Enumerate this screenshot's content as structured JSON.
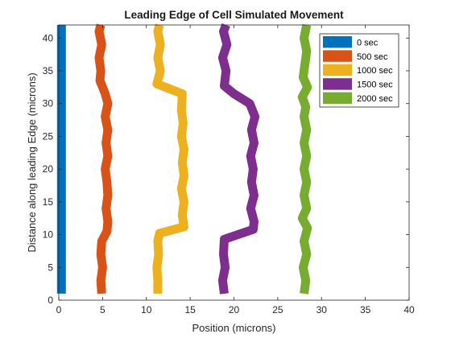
{
  "chart_data": {
    "type": "line",
    "title": "Leading Edge of Cell Simulated Movement",
    "xlabel": "Position (microns)",
    "ylabel": "Distance along leading Edge (microns)",
    "xlim": [
      0,
      40
    ],
    "ylim": [
      0,
      42
    ],
    "xticks": [
      "0",
      "5",
      "10",
      "15",
      "20",
      "25",
      "30",
      "35",
      "40"
    ],
    "yticks": [
      "0",
      "5",
      "10",
      "15",
      "20",
      "25",
      "30",
      "35",
      "40"
    ],
    "grid": false,
    "legend_position": "top-right",
    "series": [
      {
        "name": "0 sec",
        "color": "#0072BD",
        "points": [
          [
            0.3,
            1
          ],
          [
            0.3,
            42
          ]
        ]
      },
      {
        "name": "500 sec",
        "color": "#D95319",
        "points": [
          [
            4.9,
            1
          ],
          [
            4.8,
            3
          ],
          [
            5.0,
            5
          ],
          [
            4.8,
            7
          ],
          [
            4.9,
            9
          ],
          [
            5.5,
            10.5
          ],
          [
            5.6,
            12
          ],
          [
            5.4,
            14
          ],
          [
            5.6,
            16
          ],
          [
            5.5,
            18
          ],
          [
            5.3,
            20
          ],
          [
            5.6,
            22
          ],
          [
            5.4,
            24
          ],
          [
            5.6,
            26
          ],
          [
            5.3,
            28
          ],
          [
            5.6,
            30
          ],
          [
            5.3,
            31.5
          ],
          [
            4.7,
            33.5
          ],
          [
            4.8,
            35
          ],
          [
            4.6,
            37
          ],
          [
            4.9,
            39
          ],
          [
            4.6,
            41
          ],
          [
            4.8,
            42
          ]
        ]
      },
      {
        "name": "1000 sec",
        "color": "#EDB120",
        "points": [
          [
            11.3,
            1
          ],
          [
            11.3,
            3
          ],
          [
            11.2,
            5
          ],
          [
            11.4,
            7
          ],
          [
            11.3,
            9
          ],
          [
            11.5,
            10.2
          ],
          [
            14.3,
            11.2
          ],
          [
            14.1,
            13
          ],
          [
            14.3,
            15
          ],
          [
            14.0,
            17
          ],
          [
            14.3,
            19
          ],
          [
            14.1,
            21
          ],
          [
            14.3,
            23
          ],
          [
            14.0,
            25
          ],
          [
            14.2,
            27
          ],
          [
            14.0,
            29
          ],
          [
            14.1,
            31.5
          ],
          [
            11.2,
            33
          ],
          [
            11.6,
            35
          ],
          [
            11.3,
            37
          ],
          [
            11.6,
            39
          ],
          [
            11.3,
            41
          ],
          [
            11.5,
            42
          ]
        ]
      },
      {
        "name": "1500 sec",
        "color": "#7E2F8E",
        "points": [
          [
            18.9,
            1
          ],
          [
            18.7,
            3
          ],
          [
            19.0,
            5
          ],
          [
            18.8,
            7
          ],
          [
            18.9,
            9.3
          ],
          [
            22.2,
            10.8
          ],
          [
            22.3,
            12
          ],
          [
            21.9,
            14
          ],
          [
            22.3,
            16
          ],
          [
            22.0,
            18
          ],
          [
            22.2,
            20
          ],
          [
            21.9,
            22
          ],
          [
            22.3,
            24
          ],
          [
            22.0,
            26
          ],
          [
            22.4,
            28
          ],
          [
            21.8,
            30
          ],
          [
            20.0,
            31.5
          ],
          [
            18.9,
            32.7
          ],
          [
            19.1,
            35
          ],
          [
            18.7,
            37
          ],
          [
            19.2,
            39
          ],
          [
            18.8,
            41
          ],
          [
            19.1,
            42
          ]
        ]
      },
      {
        "name": "2000 sec",
        "color": "#77AC30",
        "points": [
          [
            28.0,
            1
          ],
          [
            28.2,
            3
          ],
          [
            27.9,
            5
          ],
          [
            28.3,
            7
          ],
          [
            28.0,
            9
          ],
          [
            28.4,
            11
          ],
          [
            27.8,
            12.5
          ],
          [
            28.3,
            14
          ],
          [
            28.0,
            16
          ],
          [
            28.3,
            18
          ],
          [
            28.0,
            20
          ],
          [
            28.3,
            22
          ],
          [
            28.0,
            24
          ],
          [
            28.3,
            26
          ],
          [
            28.0,
            28
          ],
          [
            28.2,
            29.5
          ],
          [
            27.8,
            31
          ],
          [
            28.4,
            32.5
          ],
          [
            27.9,
            34
          ],
          [
            28.1,
            36
          ],
          [
            28.3,
            38
          ],
          [
            28.0,
            40
          ],
          [
            28.3,
            42
          ]
        ]
      }
    ]
  }
}
